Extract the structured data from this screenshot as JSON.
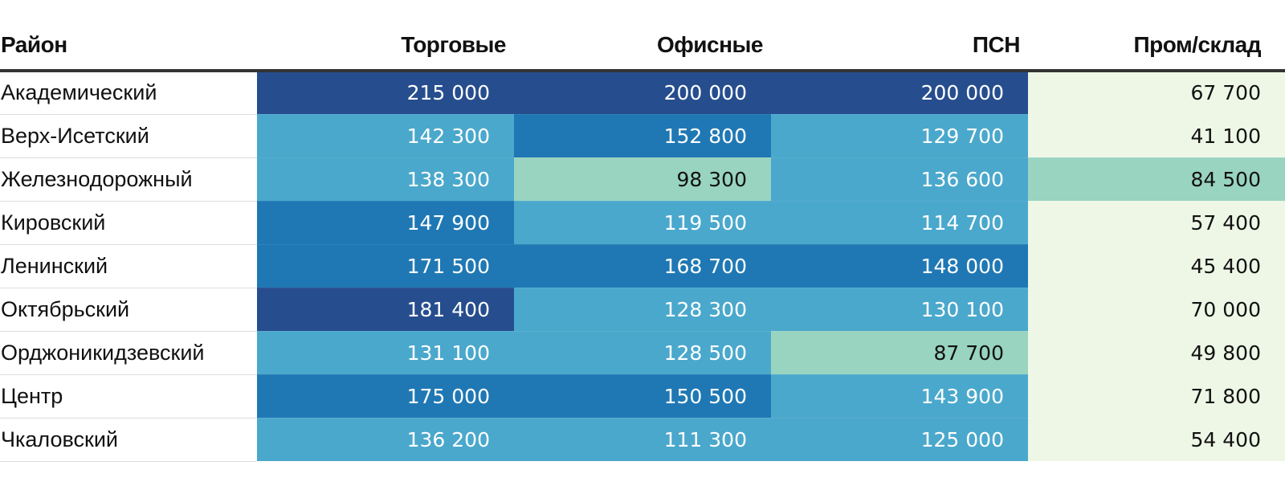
{
  "chart_data": {
    "type": "table",
    "title": "",
    "columns": [
      "Район",
      "Торговые",
      "Офисные",
      "ПСН",
      "Пром/склад"
    ],
    "rows": [
      {
        "district": "Академический",
        "values": [
          "215 000",
          "200 000",
          "200 000",
          "67 700"
        ]
      },
      {
        "district": "Верх-Исетский",
        "values": [
          "142 300",
          "152 800",
          "129 700",
          "41 100"
        ]
      },
      {
        "district": "Железнодорожный",
        "values": [
          "138 300",
          "98 300",
          "136 600",
          "84 500"
        ]
      },
      {
        "district": "Кировский",
        "values": [
          "147 900",
          "119 500",
          "114 700",
          "57 400"
        ]
      },
      {
        "district": "Ленинский",
        "values": [
          "171 500",
          "168 700",
          "148 000",
          "45 400"
        ]
      },
      {
        "district": "Октябрьский",
        "values": [
          "181 400",
          "128 300",
          "130 100",
          "70 000"
        ]
      },
      {
        "district": "Орджоникидзевский",
        "values": [
          "131 100",
          "128 500",
          "87 700",
          "49 800"
        ]
      },
      {
        "district": "Центр",
        "values": [
          "175 000",
          "150 500",
          "143 900",
          "71 800"
        ]
      },
      {
        "district": "Чкаловский",
        "values": [
          "136 200",
          "111 300",
          "125 000",
          "54 400"
        ]
      }
    ],
    "palette": {
      "darkest": "#264d8e",
      "dark": "#1f78b4",
      "mid": "#4aa8cc",
      "light": "#98d4c0",
      "lightest": "#eef7e6",
      "text_on_dark": "#ffffff",
      "text_on_light": "#111111"
    },
    "color_bins": [
      {
        "min": 178000,
        "color": "darkest"
      },
      {
        "min": 145000,
        "color": "dark"
      },
      {
        "min": 100000,
        "color": "mid"
      },
      {
        "min": 75000,
        "color": "light"
      },
      {
        "min": 0,
        "color": "lightest"
      }
    ]
  }
}
